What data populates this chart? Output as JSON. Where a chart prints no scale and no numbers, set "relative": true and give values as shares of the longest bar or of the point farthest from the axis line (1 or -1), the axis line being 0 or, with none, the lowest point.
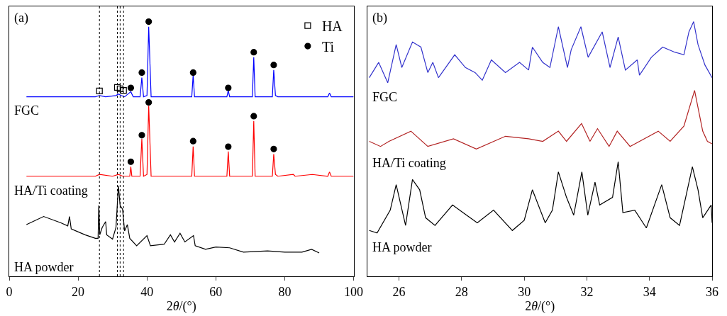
{
  "chart_data": [
    {
      "type": "line",
      "title": "(a)",
      "xlabel": "2θ/(°)",
      "relative": true,
      "xlim": [
        0,
        100
      ],
      "xticks": [
        0,
        20,
        40,
        60,
        80,
        100
      ],
      "tick_labels": "x",
      "legend": "top right",
      "marker": "none",
      "line_style": "solid",
      "ref_lines": [
        {
          "axis": "x",
          "value": 26.2,
          "color": "#000000",
          "line_style": "dotted"
        },
        {
          "axis": "x",
          "value": 31.4,
          "color": "#000000",
          "line_style": "dotted"
        },
        {
          "axis": "x",
          "value": 32.2,
          "color": "#000000",
          "line_style": "dotted"
        },
        {
          "axis": "x",
          "value": 33.2,
          "color": "#000000",
          "line_style": "dotted"
        }
      ],
      "series": [
        {
          "name": "FGC",
          "color": "#0000ff",
          "x": [
            5,
            25,
            26.2,
            28,
            31,
            31.7,
            32.5,
            33.5,
            35.3,
            36,
            38.0,
            38.5,
            39.0,
            40.0,
            40.5,
            41.2,
            53.0,
            53.4,
            53.8,
            63.2,
            63.6,
            64.0,
            70.6,
            71.0,
            71.4,
            76.4,
            76.8,
            77.3,
            78,
            92.5,
            93,
            93.5,
            100
          ],
          "values": [
            0.705,
            0.705,
            0.71,
            0.705,
            0.71,
            0.716,
            0.71,
            0.705,
            0.725,
            0.705,
            0.705,
            0.78,
            0.705,
            0.71,
            0.98,
            0.705,
            0.705,
            0.79,
            0.705,
            0.705,
            0.73,
            0.705,
            0.705,
            0.86,
            0.705,
            0.705,
            0.81,
            0.71,
            0.705,
            0.705,
            0.72,
            0.705,
            0.705
          ]
        },
        {
          "name": "HA/Ti coating",
          "color": "#ff0000",
          "x": [
            5,
            25,
            26.2,
            30,
            31.7,
            33,
            35.0,
            35.3,
            35.6,
            38.0,
            38.5,
            39.0,
            40.0,
            40.5,
            41.2,
            53.0,
            53.4,
            53.8,
            63.2,
            63.6,
            64.0,
            70.6,
            71.0,
            71.4,
            76.4,
            76.8,
            77.3,
            78,
            82.5,
            83,
            88,
            92.5,
            93,
            93.5,
            100
          ],
          "values": [
            0.393,
            0.393,
            0.4,
            0.393,
            0.4,
            0.393,
            0.393,
            0.43,
            0.393,
            0.393,
            0.54,
            0.393,
            0.4,
            0.67,
            0.393,
            0.393,
            0.51,
            0.393,
            0.393,
            0.49,
            0.393,
            0.393,
            0.61,
            0.393,
            0.393,
            0.48,
            0.4,
            0.393,
            0.4,
            0.393,
            0.4,
            0.393,
            0.41,
            0.393,
            0.393
          ]
        },
        {
          "name": "HA powder",
          "color": "#000000",
          "x": [
            5,
            10,
            15,
            17,
            17.5,
            18,
            22,
            25,
            25.8,
            26,
            26.3,
            27,
            28,
            28.3,
            30,
            31,
            31.7,
            32.2,
            32.9,
            33.5,
            34.3,
            35,
            37,
            40,
            41,
            45,
            46.8,
            48,
            49.6,
            51,
            53.5,
            54,
            57,
            60,
            64,
            68,
            75,
            80,
            85,
            87.8,
            90
          ],
          "values": [
            0.203,
            0.235,
            0.21,
            0.198,
            0.235,
            0.186,
            0.163,
            0.149,
            0.149,
            0.278,
            0.163,
            0.192,
            0.215,
            0.163,
            0.146,
            0.192,
            0.355,
            0.278,
            0.264,
            0.178,
            0.203,
            0.149,
            0.12,
            0.16,
            0.12,
            0.126,
            0.163,
            0.135,
            0.169,
            0.135,
            0.16,
            0.12,
            0.106,
            0.115,
            0.112,
            0.095,
            0.1,
            0.095,
            0.095,
            0.106,
            0.092
          ]
        },
        {
          "name": "HA",
          "type": "scatter",
          "marker": "square",
          "color": "#000000",
          "x": [
            26.2,
            31.4,
            32.2,
            33.2
          ],
          "values": [
            0.728,
            0.742,
            0.736,
            0.73
          ]
        },
        {
          "name": "Ti",
          "type": "scatter",
          "marker": "circle",
          "color": "#000000",
          "x": [
            35.3,
            38.5,
            40.5,
            53.4,
            63.6,
            71.0,
            76.8,
            35.3,
            38.5,
            40.5,
            53.4,
            63.6,
            71.0,
            76.8
          ],
          "values": [
            0.74,
            0.8,
            1.0,
            0.8,
            0.74,
            0.88,
            0.83,
            0.45,
            0.554,
            0.683,
            0.531,
            0.509,
            0.629,
            0.5
          ]
        }
      ]
    },
    {
      "type": "line",
      "title": "(b)",
      "xlabel": "2θ/(°)",
      "relative": true,
      "xlim": [
        25,
        36
      ],
      "xticks": [
        26,
        28,
        30,
        32,
        34,
        36
      ],
      "tick_labels": "x",
      "marker": "none",
      "line_style": "solid",
      "series": [
        {
          "name": "FGC",
          "color": "#3333cc",
          "x": [
            25.05,
            25.35,
            25.64,
            25.91,
            26.09,
            26.43,
            26.7,
            26.92,
            27.08,
            27.26,
            27.78,
            28.12,
            28.43,
            28.66,
            28.95,
            29.4,
            29.85,
            30.14,
            30.26,
            30.59,
            30.82,
            31.09,
            31.38,
            31.5,
            31.81,
            32.04,
            32.49,
            32.74,
            33.0,
            33.23,
            33.61,
            33.68,
            34.06,
            34.42,
            34.81,
            35.1,
            35.26,
            35.41,
            35.55,
            35.77,
            36.0
          ],
          "values": [
            0.78,
            0.84,
            0.76,
            0.91,
            0.82,
            0.92,
            0.9,
            0.8,
            0.84,
            0.78,
            0.87,
            0.82,
            0.8,
            0.77,
            0.85,
            0.8,
            0.84,
            0.81,
            0.9,
            0.84,
            0.82,
            0.98,
            0.82,
            0.89,
            0.98,
            0.86,
            0.96,
            0.82,
            0.94,
            0.81,
            0.85,
            0.79,
            0.86,
            0.9,
            0.88,
            0.87,
            0.96,
            1.0,
            0.91,
            0.83,
            0.78
          ]
        },
        {
          "name": "HA/Ti coating",
          "color": "#b22222",
          "x": [
            25.05,
            25.41,
            25.68,
            26.38,
            26.92,
            27.74,
            28.47,
            29.4,
            30.14,
            30.59,
            31.09,
            31.35,
            31.83,
            32.1,
            32.34,
            32.71,
            32.97,
            33.38,
            34.28,
            34.66,
            35.1,
            35.44,
            35.7,
            35.85,
            36.0
          ],
          "values": [
            0.53,
            0.51,
            0.53,
            0.57,
            0.51,
            0.54,
            0.5,
            0.55,
            0.54,
            0.53,
            0.57,
            0.53,
            0.6,
            0.53,
            0.58,
            0.51,
            0.57,
            0.51,
            0.57,
            0.53,
            0.59,
            0.73,
            0.57,
            0.53,
            0.52
          ]
        },
        {
          "name": "HA powder",
          "color": "#000000",
          "x": [
            25.05,
            25.3,
            25.72,
            25.91,
            26.21,
            26.43,
            26.66,
            26.85,
            27.15,
            27.71,
            28.05,
            28.5,
            29.02,
            29.62,
            30.0,
            30.26,
            30.67,
            30.9,
            31.09,
            31.35,
            31.58,
            31.84,
            32.03,
            32.26,
            32.41,
            32.82,
            33.0,
            33.15,
            33.53,
            33.9,
            34.39,
            34.66,
            34.96,
            35.37,
            35.55,
            35.7,
            35.97,
            36.0
          ],
          "values": [
            0.18,
            0.17,
            0.26,
            0.36,
            0.2,
            0.38,
            0.34,
            0.23,
            0.2,
            0.28,
            0.25,
            0.21,
            0.26,
            0.18,
            0.22,
            0.34,
            0.21,
            0.26,
            0.41,
            0.31,
            0.24,
            0.41,
            0.24,
            0.37,
            0.28,
            0.31,
            0.45,
            0.25,
            0.26,
            0.19,
            0.36,
            0.23,
            0.2,
            0.43,
            0.34,
            0.23,
            0.28,
            0.21
          ]
        }
      ]
    }
  ]
}
